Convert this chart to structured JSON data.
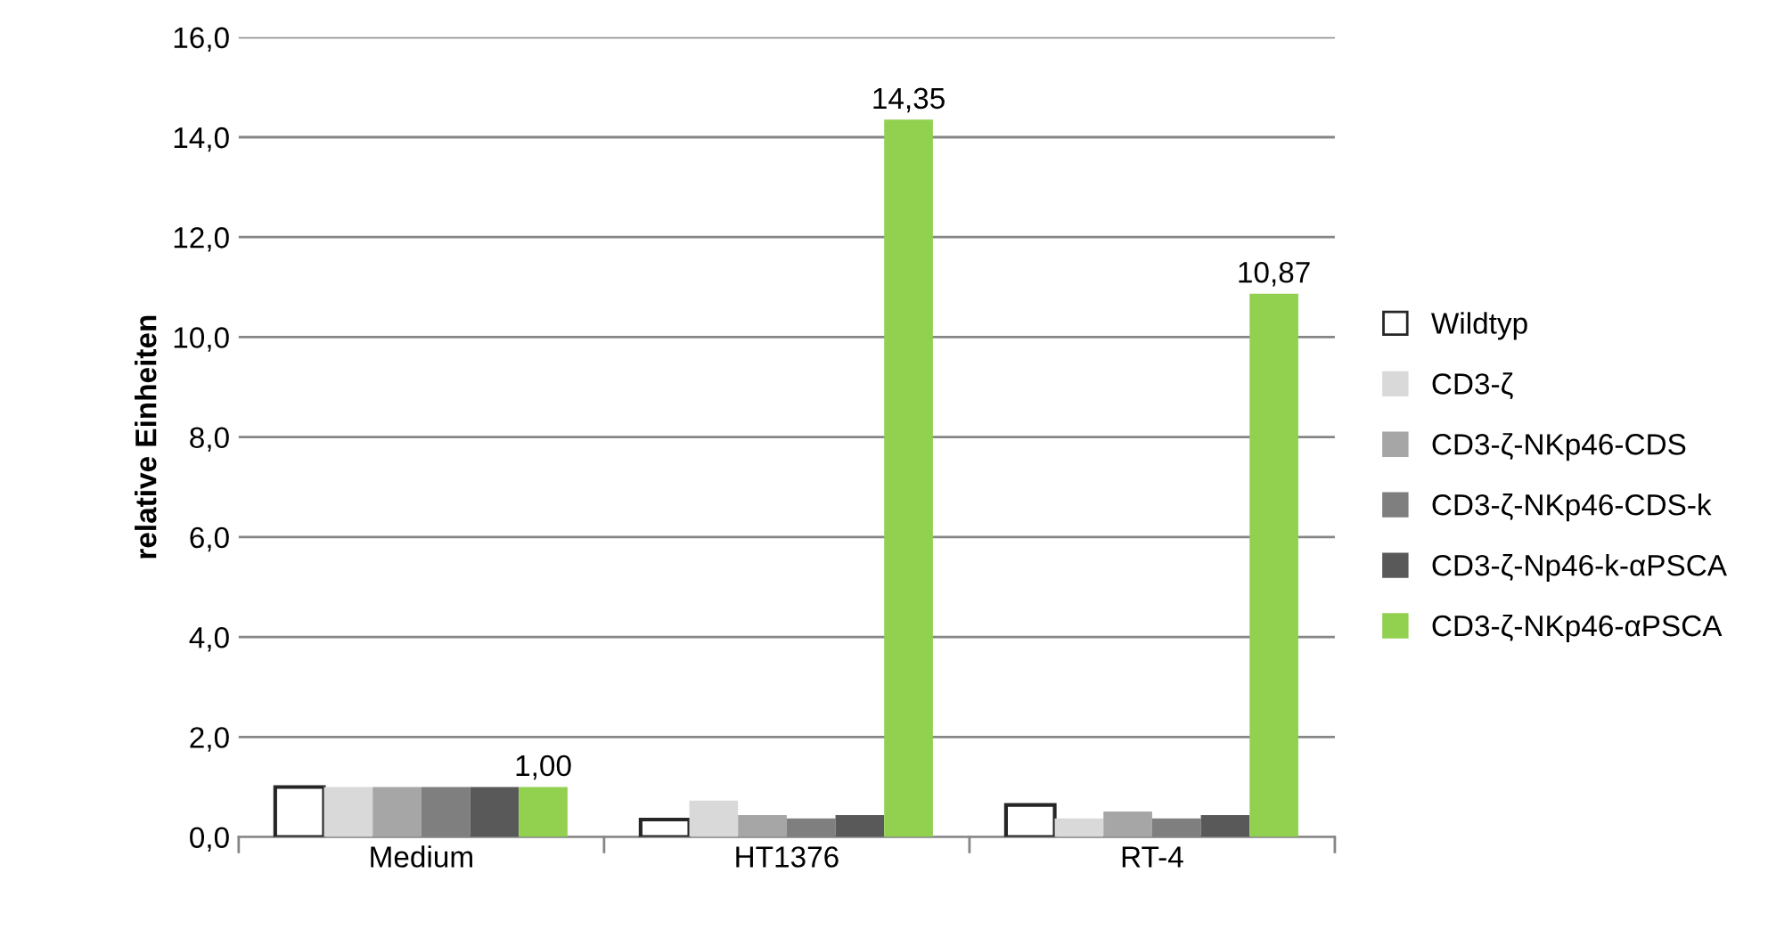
{
  "chart_data": {
    "type": "bar",
    "ylabel": "relative Einheiten",
    "categories": [
      "Medium",
      "HT1376",
      "RT-4"
    ],
    "series": [
      {
        "name": "Wildtyp",
        "color": "#ffffff",
        "values": [
          1.0,
          0.35,
          0.64
        ]
      },
      {
        "name": "CD3-ζ",
        "color": "#d9d9d9",
        "values": [
          1.0,
          0.73,
          0.37
        ]
      },
      {
        "name": "CD3-ζ-NKp46-CDS",
        "color": "#a6a6a6",
        "values": [
          1.0,
          0.44,
          0.51
        ]
      },
      {
        "name": "CD3-ζ-NKp46-CDS-k",
        "color": "#7f7f7f",
        "values": [
          1.0,
          0.37,
          0.37
        ]
      },
      {
        "name": "CD3-ζ-Np46-k-αPSCA",
        "color": "#595959",
        "values": [
          1.0,
          0.44,
          0.44
        ]
      },
      {
        "name": "CD3-ζ-NKp46-αPSCA",
        "color": "#92d050",
        "values": [
          1.0,
          14.35,
          10.87
        ],
        "value_labels": [
          "1,00",
          "14,35",
          "10,87"
        ]
      }
    ],
    "ylim": [
      0,
      16
    ],
    "yticks": [
      {
        "value": 0,
        "label": "0,0"
      },
      {
        "value": 2,
        "label": "2,0"
      },
      {
        "value": 4,
        "label": "4,0"
      },
      {
        "value": 6,
        "label": "6,0"
      },
      {
        "value": 8,
        "label": "8,0"
      },
      {
        "value": 10,
        "label": "10,0"
      },
      {
        "value": 12,
        "label": "12,0"
      },
      {
        "value": 14,
        "label": "14,0"
      },
      {
        "value": 16,
        "label": "16,0"
      }
    ],
    "grid": "y",
    "legend": "right"
  }
}
